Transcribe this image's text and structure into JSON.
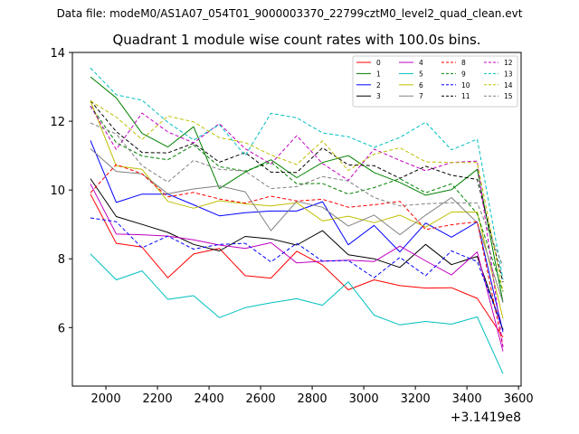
{
  "header": {
    "data_file_label": "Data file: modeM0/AS1A07_054T01_9000003370_22799cztM0_level2_quad_clean.evt"
  },
  "chart_data": {
    "type": "line",
    "title": "Quadrant 1 module wise count rates with 100.0s bins.",
    "xlabel": "",
    "ylabel": "",
    "x_offset_label": "+3.1419e8",
    "xlim": [
      1870,
      3610
    ],
    "ylim": [
      4.3,
      14.0
    ],
    "xticks": [
      2000,
      2200,
      2400,
      2600,
      2800,
      3000,
      3200,
      3400,
      3600
    ],
    "yticks": [
      6,
      8,
      10,
      12,
      14
    ],
    "legend_position": "top-right",
    "x": [
      1940,
      2040,
      2140,
      2240,
      2340,
      2440,
      2540,
      2640,
      2740,
      2840,
      2940,
      3040,
      3140,
      3240,
      3340,
      3440,
      3540
    ],
    "series": [
      {
        "name": "0",
        "color": "#ff0000",
        "dash": "solid",
        "values": [
          9.88,
          8.45,
          8.34,
          7.45,
          8.14,
          8.3,
          7.51,
          7.44,
          8.22,
          7.82,
          7.1,
          7.39,
          7.22,
          7.15,
          7.16,
          6.85,
          5.72
        ]
      },
      {
        "name": "1",
        "color": "#008000",
        "dash": "solid",
        "values": [
          13.29,
          12.68,
          11.65,
          11.25,
          11.84,
          10.04,
          10.52,
          10.88,
          10.36,
          10.8,
          11.0,
          10.51,
          10.22,
          9.85,
          10.01,
          10.6,
          6.74
        ]
      },
      {
        "name": "2",
        "color": "#0000ff",
        "dash": "solid",
        "values": [
          11.44,
          9.64,
          9.88,
          9.88,
          9.57,
          9.25,
          9.34,
          9.39,
          9.39,
          9.66,
          8.41,
          8.97,
          8.2,
          9.04,
          8.63,
          9.07,
          5.87
        ]
      },
      {
        "name": "3",
        "color": "#000000",
        "dash": "solid",
        "values": [
          10.33,
          9.23,
          9.0,
          8.77,
          8.42,
          8.23,
          8.65,
          8.58,
          8.4,
          8.82,
          8.12,
          8.0,
          7.75,
          8.42,
          7.83,
          8.07,
          5.93
        ]
      },
      {
        "name": "4",
        "color": "#c000c0",
        "dash": "solid",
        "values": [
          10.18,
          8.72,
          8.7,
          8.66,
          8.55,
          8.4,
          8.3,
          8.47,
          7.88,
          7.93,
          7.96,
          7.92,
          8.37,
          7.94,
          7.53,
          8.2,
          5.31
        ]
      },
      {
        "name": "5",
        "color": "#00bfbf",
        "dash": "solid",
        "values": [
          8.14,
          7.39,
          7.65,
          6.82,
          6.93,
          6.29,
          6.58,
          6.72,
          6.84,
          6.65,
          7.33,
          6.36,
          6.08,
          6.18,
          6.1,
          6.31,
          4.66
        ]
      },
      {
        "name": "6",
        "color": "#bfbf00",
        "dash": "solid",
        "values": [
          12.59,
          10.7,
          10.6,
          9.67,
          9.47,
          9.69,
          9.6,
          9.54,
          9.63,
          9.1,
          9.24,
          9.05,
          9.27,
          8.92,
          9.36,
          9.36,
          6.26
        ]
      },
      {
        "name": "7",
        "color": "#808080",
        "dash": "solid",
        "values": [
          11.2,
          10.54,
          10.47,
          9.89,
          10.03,
          10.12,
          9.95,
          8.82,
          9.67,
          9.5,
          8.95,
          9.27,
          8.7,
          9.27,
          9.78,
          9.05,
          6.73
        ]
      },
      {
        "name": "8",
        "color": "#ff0000",
        "dash": "dashed",
        "values": [
          9.92,
          10.74,
          10.47,
          9.8,
          9.93,
          9.74,
          9.62,
          9.82,
          9.68,
          9.73,
          9.5,
          9.57,
          9.67,
          8.85,
          8.99,
          9.08,
          5.45
        ]
      },
      {
        "name": "9",
        "color": "#008000",
        "dash": "dashed",
        "values": [
          12.45,
          11.38,
          10.99,
          10.88,
          11.31,
          10.68,
          10.55,
          10.81,
          10.18,
          10.19,
          9.88,
          10.07,
          10.33,
          9.92,
          10.18,
          9.31,
          7.05
        ]
      },
      {
        "name": "10",
        "color": "#0000ff",
        "dash": "dashed",
        "values": [
          9.19,
          9.08,
          8.32,
          8.66,
          8.28,
          8.42,
          8.45,
          7.91,
          8.45,
          7.93,
          7.95,
          7.45,
          8.04,
          7.51,
          8.23,
          7.92,
          5.95
        ]
      },
      {
        "name": "11",
        "color": "#000000",
        "dash": "dashed",
        "values": [
          12.6,
          11.7,
          11.09,
          11.08,
          11.36,
          10.81,
          11.09,
          10.52,
          10.51,
          11.23,
          10.73,
          10.71,
          10.34,
          10.69,
          10.43,
          10.31,
          7.32
        ]
      },
      {
        "name": "12",
        "color": "#c000c0",
        "dash": "dashed",
        "values": [
          12.44,
          11.18,
          12.24,
          11.69,
          11.37,
          11.93,
          11.2,
          10.76,
          11.58,
          10.77,
          10.28,
          11.19,
          10.86,
          10.56,
          10.8,
          10.84,
          5.42
        ]
      },
      {
        "name": "13",
        "color": "#00bfbf",
        "dash": "dashed",
        "values": [
          13.55,
          12.77,
          12.61,
          11.97,
          11.45,
          11.9,
          11.0,
          12.23,
          12.1,
          11.66,
          11.55,
          11.24,
          11.53,
          11.97,
          11.17,
          11.48,
          7.4
        ]
      },
      {
        "name": "14",
        "color": "#bfbf00",
        "dash": "dashed",
        "values": [
          12.59,
          12.12,
          11.47,
          12.15,
          11.98,
          11.52,
          11.38,
          11.02,
          10.74,
          11.43,
          10.57,
          11.04,
          11.23,
          10.82,
          10.8,
          10.8,
          7.04
        ]
      },
      {
        "name": "15",
        "color": "#808080",
        "dash": "dashed",
        "values": [
          11.95,
          11.63,
          10.71,
          10.23,
          10.86,
          10.6,
          10.55,
          10.04,
          10.1,
          10.39,
          10.26,
          9.78,
          9.54,
          9.6,
          9.63,
          9.62,
          7.79
        ]
      }
    ]
  }
}
